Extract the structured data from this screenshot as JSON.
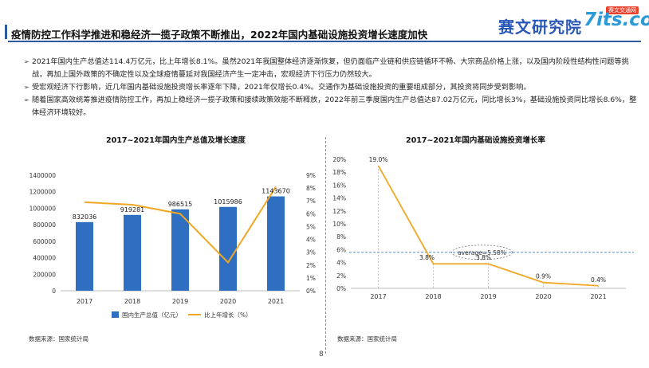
{
  "header": {
    "title": "疫情防控工作科学推进和稳经济一揽子政策不断推出，2022年国内基础设施投资增长速度加快",
    "logo_cn": "赛文研究院",
    "logo_en": "7its.com",
    "logo_badge": "赛文交通网"
  },
  "bullets": [
    "2021年国内生产总值达114.4万亿元，比上年增长8.1%。虽然2021年我国整体经济逐渐恢复，但仍面临产业链和供应链循环不畅、大宗商品价格上涨，以及国内阶段性结构性问题等挑战，再加上国外政策的不确定性以及全球疫情蔓延对我国经济产生一定冲击，宏观经济下行压力仍然较大。",
    "受宏观经济下行影响，近几年国内基础设施投资增长率逐年下降，2021年仅增长0.4%。交通作为基础设施投资的重要组成部分，其投资将同步受到影响。",
    "随着国家高效统筹推进疫情防控工作，再加上稳经济一揽子政策和接续政策效能不断释放，2022年前三季度国内生产总值达87.02万亿元，同比增长3%，基础设施投资同比增长8.6%，整体经济环境较好。"
  ],
  "bullet_mark": "➢",
  "source_label": "数据来源：国家统计局",
  "page_number": "8",
  "colors": {
    "accent": "#2f5b9e",
    "bar": "#2e6fc1",
    "line": "#f0a824",
    "ref": "#5b8fd6"
  },
  "chart_data": [
    {
      "type": "bar",
      "title": "2017~2021年国内生产总值及增长速度",
      "categories": [
        "2017",
        "2018",
        "2019",
        "2020",
        "2021"
      ],
      "series": [
        {
          "name": "国内生产总值（亿元）",
          "type": "bar",
          "axis": "left",
          "values": [
            832036,
            919281,
            986515,
            1015986,
            1143670
          ],
          "labels": [
            "832036",
            "919281",
            "986515",
            "1015986",
            "1143670"
          ]
        },
        {
          "name": "比上年增长（%）",
          "type": "line",
          "axis": "right",
          "values": [
            6.9,
            6.7,
            6.0,
            2.2,
            8.1
          ]
        }
      ],
      "ylim_left": [
        0,
        1400000
      ],
      "yticks_left": [
        "0",
        "200000",
        "400000",
        "600000",
        "800000",
        "1000000",
        "1200000",
        "1400000"
      ],
      "ylim_right": [
        0,
        9
      ],
      "yticks_right": [
        "0%",
        "1%",
        "2%",
        "3%",
        "4%",
        "5%",
        "6%",
        "7%",
        "8%",
        "9%"
      ],
      "grid": false,
      "legend": "bottom"
    },
    {
      "type": "line",
      "title": "2017~2021年国内基础设施投资增长率",
      "x": [
        "2017",
        "2018",
        "2019",
        "2020",
        "2021"
      ],
      "values": [
        19.0,
        3.8,
        3.8,
        0.9,
        0.4
      ],
      "labels": [
        "19.0%",
        "3.8%",
        "3.8%",
        "0.9%",
        "0.4%"
      ],
      "ylim": [
        0,
        20
      ],
      "yticks": [
        "0%",
        "2%",
        "4%",
        "6%",
        "8%",
        "10%",
        "12%",
        "14%",
        "16%",
        "18%",
        "20%"
      ],
      "average": 5.58,
      "average_label": "average=5.58%",
      "grid": false
    }
  ]
}
